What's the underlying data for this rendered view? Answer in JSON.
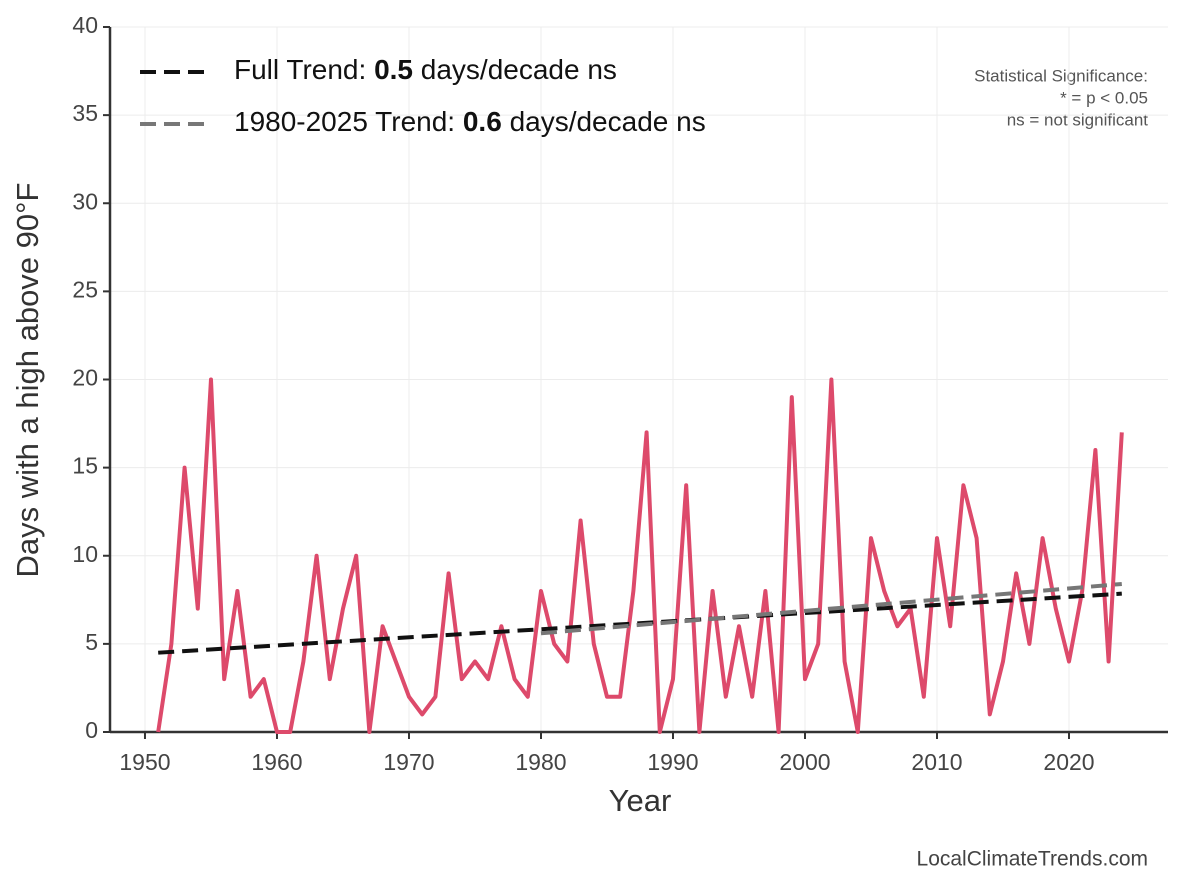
{
  "chart_data": {
    "type": "line",
    "x_label": "Year",
    "y_label": "Days with a high above 90°F",
    "xlim": [
      1947.35,
      2027.5
    ],
    "ylim": [
      0,
      40
    ],
    "xticks": [
      1950,
      1960,
      1970,
      1980,
      1990,
      2000,
      2010,
      2020
    ],
    "yticks": [
      0,
      5,
      10,
      15,
      20,
      25,
      30,
      35,
      40
    ],
    "grid": true,
    "legend": "upper left",
    "series": [
      {
        "color": "#dd4a6b",
        "dash": false,
        "x": [
          1951,
          1952,
          1953,
          1954,
          1955,
          1956,
          1957,
          1958,
          1959,
          1960,
          1961,
          1962,
          1963,
          1964,
          1965,
          1966,
          1967,
          1968,
          1969,
          1970,
          1971,
          1972,
          1973,
          1974,
          1975,
          1976,
          1977,
          1978,
          1979,
          1980,
          1981,
          1982,
          1983,
          1984,
          1985,
          1986,
          1987,
          1988,
          1989,
          1990,
          1991,
          1992,
          1993,
          1994,
          1995,
          1996,
          1997,
          1998,
          1999,
          2000,
          2001,
          2002,
          2003,
          2004,
          2005,
          2006,
          2007,
          2008,
          2009,
          2010,
          2011,
          2012,
          2013,
          2014,
          2015,
          2016,
          2017,
          2018,
          2019,
          2020,
          2021,
          2022,
          2023,
          2024
        ],
        "values": [
          0,
          5,
          15,
          7,
          20,
          3,
          8,
          2,
          3,
          0,
          0,
          4,
          10,
          3,
          7,
          10,
          0,
          6,
          4,
          2,
          1,
          2,
          9,
          3,
          4,
          3,
          6,
          3,
          2,
          8,
          5,
          4,
          12,
          5,
          2,
          2,
          8,
          17,
          0,
          3,
          14,
          0,
          8,
          2,
          6,
          2,
          8,
          0,
          19,
          3,
          5,
          20,
          4,
          0,
          11,
          8,
          6,
          7,
          2,
          11,
          6,
          14,
          11,
          1,
          4,
          9,
          5,
          11,
          7,
          4,
          8,
          16,
          4,
          17
        ]
      },
      {
        "name": "Full Trend:",
        "slope": 0.5,
        "unit": "days/decade ns",
        "color": "#111111",
        "dash": true,
        "x": [
          1951,
          2024
        ],
        "values": [
          4.5,
          7.85
        ]
      },
      {
        "name": "1980-2025 Trend:",
        "slope": 0.6,
        "unit": "days/decade ns",
        "color": "#777777",
        "dash": true,
        "x": [
          1980,
          2024
        ],
        "values": [
          5.6,
          8.4
        ]
      }
    ],
    "note": [
      "Statistical Significance:",
      "* = p < 0.05",
      "ns = not significant"
    ],
    "source": "LocalClimateTrends.com"
  }
}
